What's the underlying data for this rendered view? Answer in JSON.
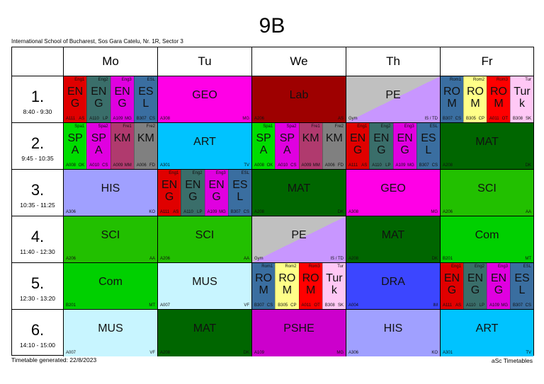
{
  "title": "9B",
  "school": "International School of Bucharest, Sos Gara Catelu, Nr. 1R, Sector 3",
  "footer": {
    "generated": "Timetable generated: 22/8/2023",
    "brand": "aSc Timetables"
  },
  "days": [
    "Mo",
    "Tu",
    "We",
    "Th",
    "Fr"
  ],
  "periods": [
    {
      "num": "1.",
      "time": "8:40 - 9:30"
    },
    {
      "num": "2.",
      "time": "9:45 - 10:35"
    },
    {
      "num": "3.",
      "time": "10:35 - 11:25"
    },
    {
      "num": "4.",
      "time": "11:40 - 12:30"
    },
    {
      "num": "5.",
      "time": "12:30 - 13:20"
    },
    {
      "num": "6.",
      "time": "14:10 - 15:00"
    }
  ],
  "cells": {
    "p1": {
      "mo": [
        {
          "subj": "ENG",
          "grp": "Eng1",
          "room": "A111",
          "tch": "AS",
          "color": "#e00000"
        },
        {
          "subj": "ENG",
          "grp": "Eng2",
          "room": "A110",
          "tch": "LP",
          "color": "#3a6e6a"
        },
        {
          "subj": "ENG",
          "grp": "Eng3",
          "room": "A109",
          "tch": "MG",
          "color": "#e000e0"
        },
        {
          "subj": "ESL",
          "grp": "ESL",
          "room": "B307",
          "tch": "CS",
          "color": "#3a6ea0"
        }
      ],
      "tu": [
        {
          "subj": "GEO",
          "room": "A308",
          "tch": "MG",
          "color": "#ff00e6"
        }
      ],
      "we": [
        {
          "subj": "Lab",
          "room": "A206",
          "tch": "AS",
          "color": "#9e0000"
        }
      ],
      "th": [
        {
          "subj": "PE",
          "room": "Gym",
          "tch": "IS / TD",
          "color": "#c0c0c0",
          "color2": "#c896ff"
        }
      ],
      "fr": [
        {
          "subj": "ROM",
          "grp": "Rom1",
          "room": "B307",
          "tch": "CS",
          "color": "#3a6ea0"
        },
        {
          "subj": "ROM",
          "grp": "Rom2",
          "room": "B305",
          "tch": "CP",
          "color": "#ffff88"
        },
        {
          "subj": "ROM",
          "grp": "Rom3",
          "room": "A011",
          "tch": "OT",
          "color": "#ff0000"
        },
        {
          "subj": "Turk",
          "grp": "Tur",
          "room": "B308",
          "tch": "SK",
          "color": "#ffc8f5"
        }
      ]
    },
    "p2": {
      "mo": [
        {
          "subj": "SPA",
          "grp": "Spa1",
          "room": "A008",
          "tch": "OK",
          "color": "#00dd00"
        },
        {
          "subj": "SPA",
          "grp": "Spa2",
          "room": "A010",
          "tch": "CS",
          "color": "#e000e0"
        },
        {
          "subj": "KM",
          "grp": "Fre1",
          "room": "A009",
          "tch": "MM",
          "color": "#b03a6e"
        },
        {
          "subj": "KM",
          "grp": "Fre2",
          "room": "A006",
          "tch": "FD",
          "color": "#808080"
        }
      ],
      "tu": [
        {
          "subj": "ART",
          "room": "A301",
          "tch": "TV",
          "color": "#00c3ff"
        }
      ],
      "we": [
        {
          "subj": "SPA",
          "grp": "Spa1",
          "room": "A008",
          "tch": "OK",
          "color": "#00dd00"
        },
        {
          "subj": "SPA",
          "grp": "Spa2",
          "room": "A010",
          "tch": "CS",
          "color": "#e000e0"
        },
        {
          "subj": "KM",
          "grp": "Fre1",
          "room": "A009",
          "tch": "MM",
          "color": "#b03a6e"
        },
        {
          "subj": "KM",
          "grp": "Fre2",
          "room": "A006",
          "tch": "FD",
          "color": "#808080"
        }
      ],
      "th": [
        {
          "subj": "ENG",
          "grp": "Eng1",
          "room": "A111",
          "tch": "AS",
          "color": "#e00000"
        },
        {
          "subj": "ENG",
          "grp": "Eng2",
          "room": "A110",
          "tch": "LP",
          "color": "#3a6e6a"
        },
        {
          "subj": "ENG",
          "grp": "Eng3",
          "room": "A109",
          "tch": "MG",
          "color": "#e000e0"
        },
        {
          "subj": "ESL",
          "grp": "ESL",
          "room": "B307",
          "tch": "CS",
          "color": "#3a6ea0"
        }
      ],
      "fr": [
        {
          "subj": "MAT",
          "room": "A208",
          "tch": "DK",
          "color": "#006600"
        }
      ]
    },
    "p3": {
      "mo": [
        {
          "subj": "HIS",
          "room": "A306",
          "tch": "KO",
          "color": "#a0a0ff"
        }
      ],
      "tu": [
        {
          "subj": "ENG",
          "grp": "Eng1",
          "room": "A111",
          "tch": "AS",
          "color": "#e00000"
        },
        {
          "subj": "ENG",
          "grp": "Eng2",
          "room": "A110",
          "tch": "LP",
          "color": "#3a6e6a"
        },
        {
          "subj": "ENG",
          "grp": "Eng3",
          "room": "A109",
          "tch": "MG",
          "color": "#e000e0"
        },
        {
          "subj": "ESL",
          "grp": "ESL",
          "room": "B307",
          "tch": "CS",
          "color": "#3a6ea0"
        }
      ],
      "we": [
        {
          "subj": "MAT",
          "room": "A208",
          "tch": "DK",
          "color": "#006600"
        }
      ],
      "th": [
        {
          "subj": "GEO",
          "room": "A308",
          "tch": "MG",
          "color": "#ff00e6"
        }
      ],
      "fr": [
        {
          "subj": "SCI",
          "room": "A206",
          "tch": "AA",
          "color": "#22c000"
        }
      ]
    },
    "p4": {
      "mo": [
        {
          "subj": "SCI",
          "room": "A206",
          "tch": "AA",
          "color": "#22c000"
        }
      ],
      "tu": [
        {
          "subj": "SCI",
          "room": "A206",
          "tch": "AA",
          "color": "#22c000"
        }
      ],
      "we": [
        {
          "subj": "PE",
          "room": "Gym",
          "tch": "IS / TD",
          "color": "#c0c0c0",
          "color2": "#c896ff"
        }
      ],
      "th": [
        {
          "subj": "MAT",
          "room": "A208",
          "tch": "DK",
          "color": "#006600"
        }
      ],
      "fr": [
        {
          "subj": "Com",
          "room": "B201",
          "tch": "MT",
          "color": "#00d000"
        }
      ]
    },
    "p5": {
      "mo": [
        {
          "subj": "Com",
          "room": "B201",
          "tch": "MT",
          "color": "#00d000"
        }
      ],
      "tu": [
        {
          "subj": "MUS",
          "room": "A007",
          "tch": "VF",
          "color": "#c8f5ff"
        }
      ],
      "we": [
        {
          "subj": "ROM",
          "grp": "Rom1",
          "room": "B307",
          "tch": "CS",
          "color": "#3a6ea0"
        },
        {
          "subj": "ROM",
          "grp": "Rom2",
          "room": "B305",
          "tch": "CP",
          "color": "#ffff88"
        },
        {
          "subj": "ROM",
          "grp": "Rom3",
          "room": "A011",
          "tch": "OT",
          "color": "#ff0000"
        },
        {
          "subj": "Turk",
          "grp": "Tur",
          "room": "B308",
          "tch": "SK",
          "color": "#ffc8f5"
        }
      ],
      "th": [
        {
          "subj": "DRA",
          "room": "A004",
          "tch": "IM",
          "color": "#3c46ff"
        }
      ],
      "fr": [
        {
          "subj": "ENG",
          "grp": "Eng1",
          "room": "A111",
          "tch": "AS",
          "color": "#e00000"
        },
        {
          "subj": "ENG",
          "grp": "Eng2",
          "room": "A110",
          "tch": "LP",
          "color": "#3a6e6a"
        },
        {
          "subj": "ENG",
          "grp": "Eng3",
          "room": "A109",
          "tch": "MG",
          "color": "#e000e0"
        },
        {
          "subj": "ESL",
          "grp": "ESL",
          "room": "B307",
          "tch": "CS",
          "color": "#3a6ea0"
        }
      ]
    },
    "p6": {
      "mo": [
        {
          "subj": "MUS",
          "room": "A007",
          "tch": "VF",
          "color": "#c8f5ff"
        }
      ],
      "tu": [
        {
          "subj": "MAT",
          "room": "A208",
          "tch": "DK",
          "color": "#006600"
        }
      ],
      "we": [
        {
          "subj": "PSHE",
          "room": "A109",
          "tch": "MG",
          "color": "#cc00cc"
        }
      ],
      "th": [
        {
          "subj": "HIS",
          "room": "A306",
          "tch": "KO",
          "color": "#a0a0ff"
        }
      ],
      "fr": [
        {
          "subj": "ART",
          "room": "A301",
          "tch": "TV",
          "color": "#00c3ff"
        }
      ]
    }
  }
}
